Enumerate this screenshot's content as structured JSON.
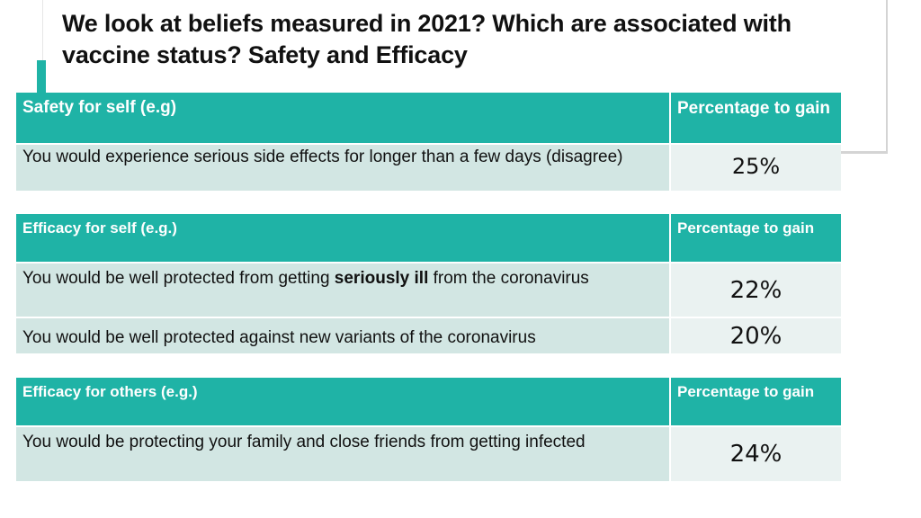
{
  "title": "We look at beliefs measured in 2021? Which are associated with vaccine status? Safety and Efficacy",
  "tables": [
    {
      "header": {
        "label": "Safety for self  (e.g)",
        "value_header": "Percentage to gain"
      },
      "rows": [
        {
          "text": "You would experience serious side effects for longer than a few days (disagree)",
          "value": "25%"
        }
      ]
    },
    {
      "header": {
        "label": "Efficacy for self (e.g.)",
        "value_header": "Percentage to gain"
      },
      "rows": [
        {
          "text_before": "You would be well protected from getting ",
          "text_bold": "seriously ill",
          "text_after": " from the coronavirus",
          "value": "22%"
        },
        {
          "text": "You would be well protected against new variants of the coronavirus",
          "value": "20%"
        }
      ]
    },
    {
      "header": {
        "label": "Efficacy for others (e.g.)",
        "value_header": "Percentage to gain"
      },
      "rows": [
        {
          "text": "You would be protecting your family and close friends from getting infected",
          "value": "24%"
        }
      ]
    }
  ],
  "colors": {
    "header_teal": "#1fb3a6",
    "row_light": "#d2e6e3",
    "value_cell": "#eaf2f1",
    "text_dark": "#111111"
  }
}
